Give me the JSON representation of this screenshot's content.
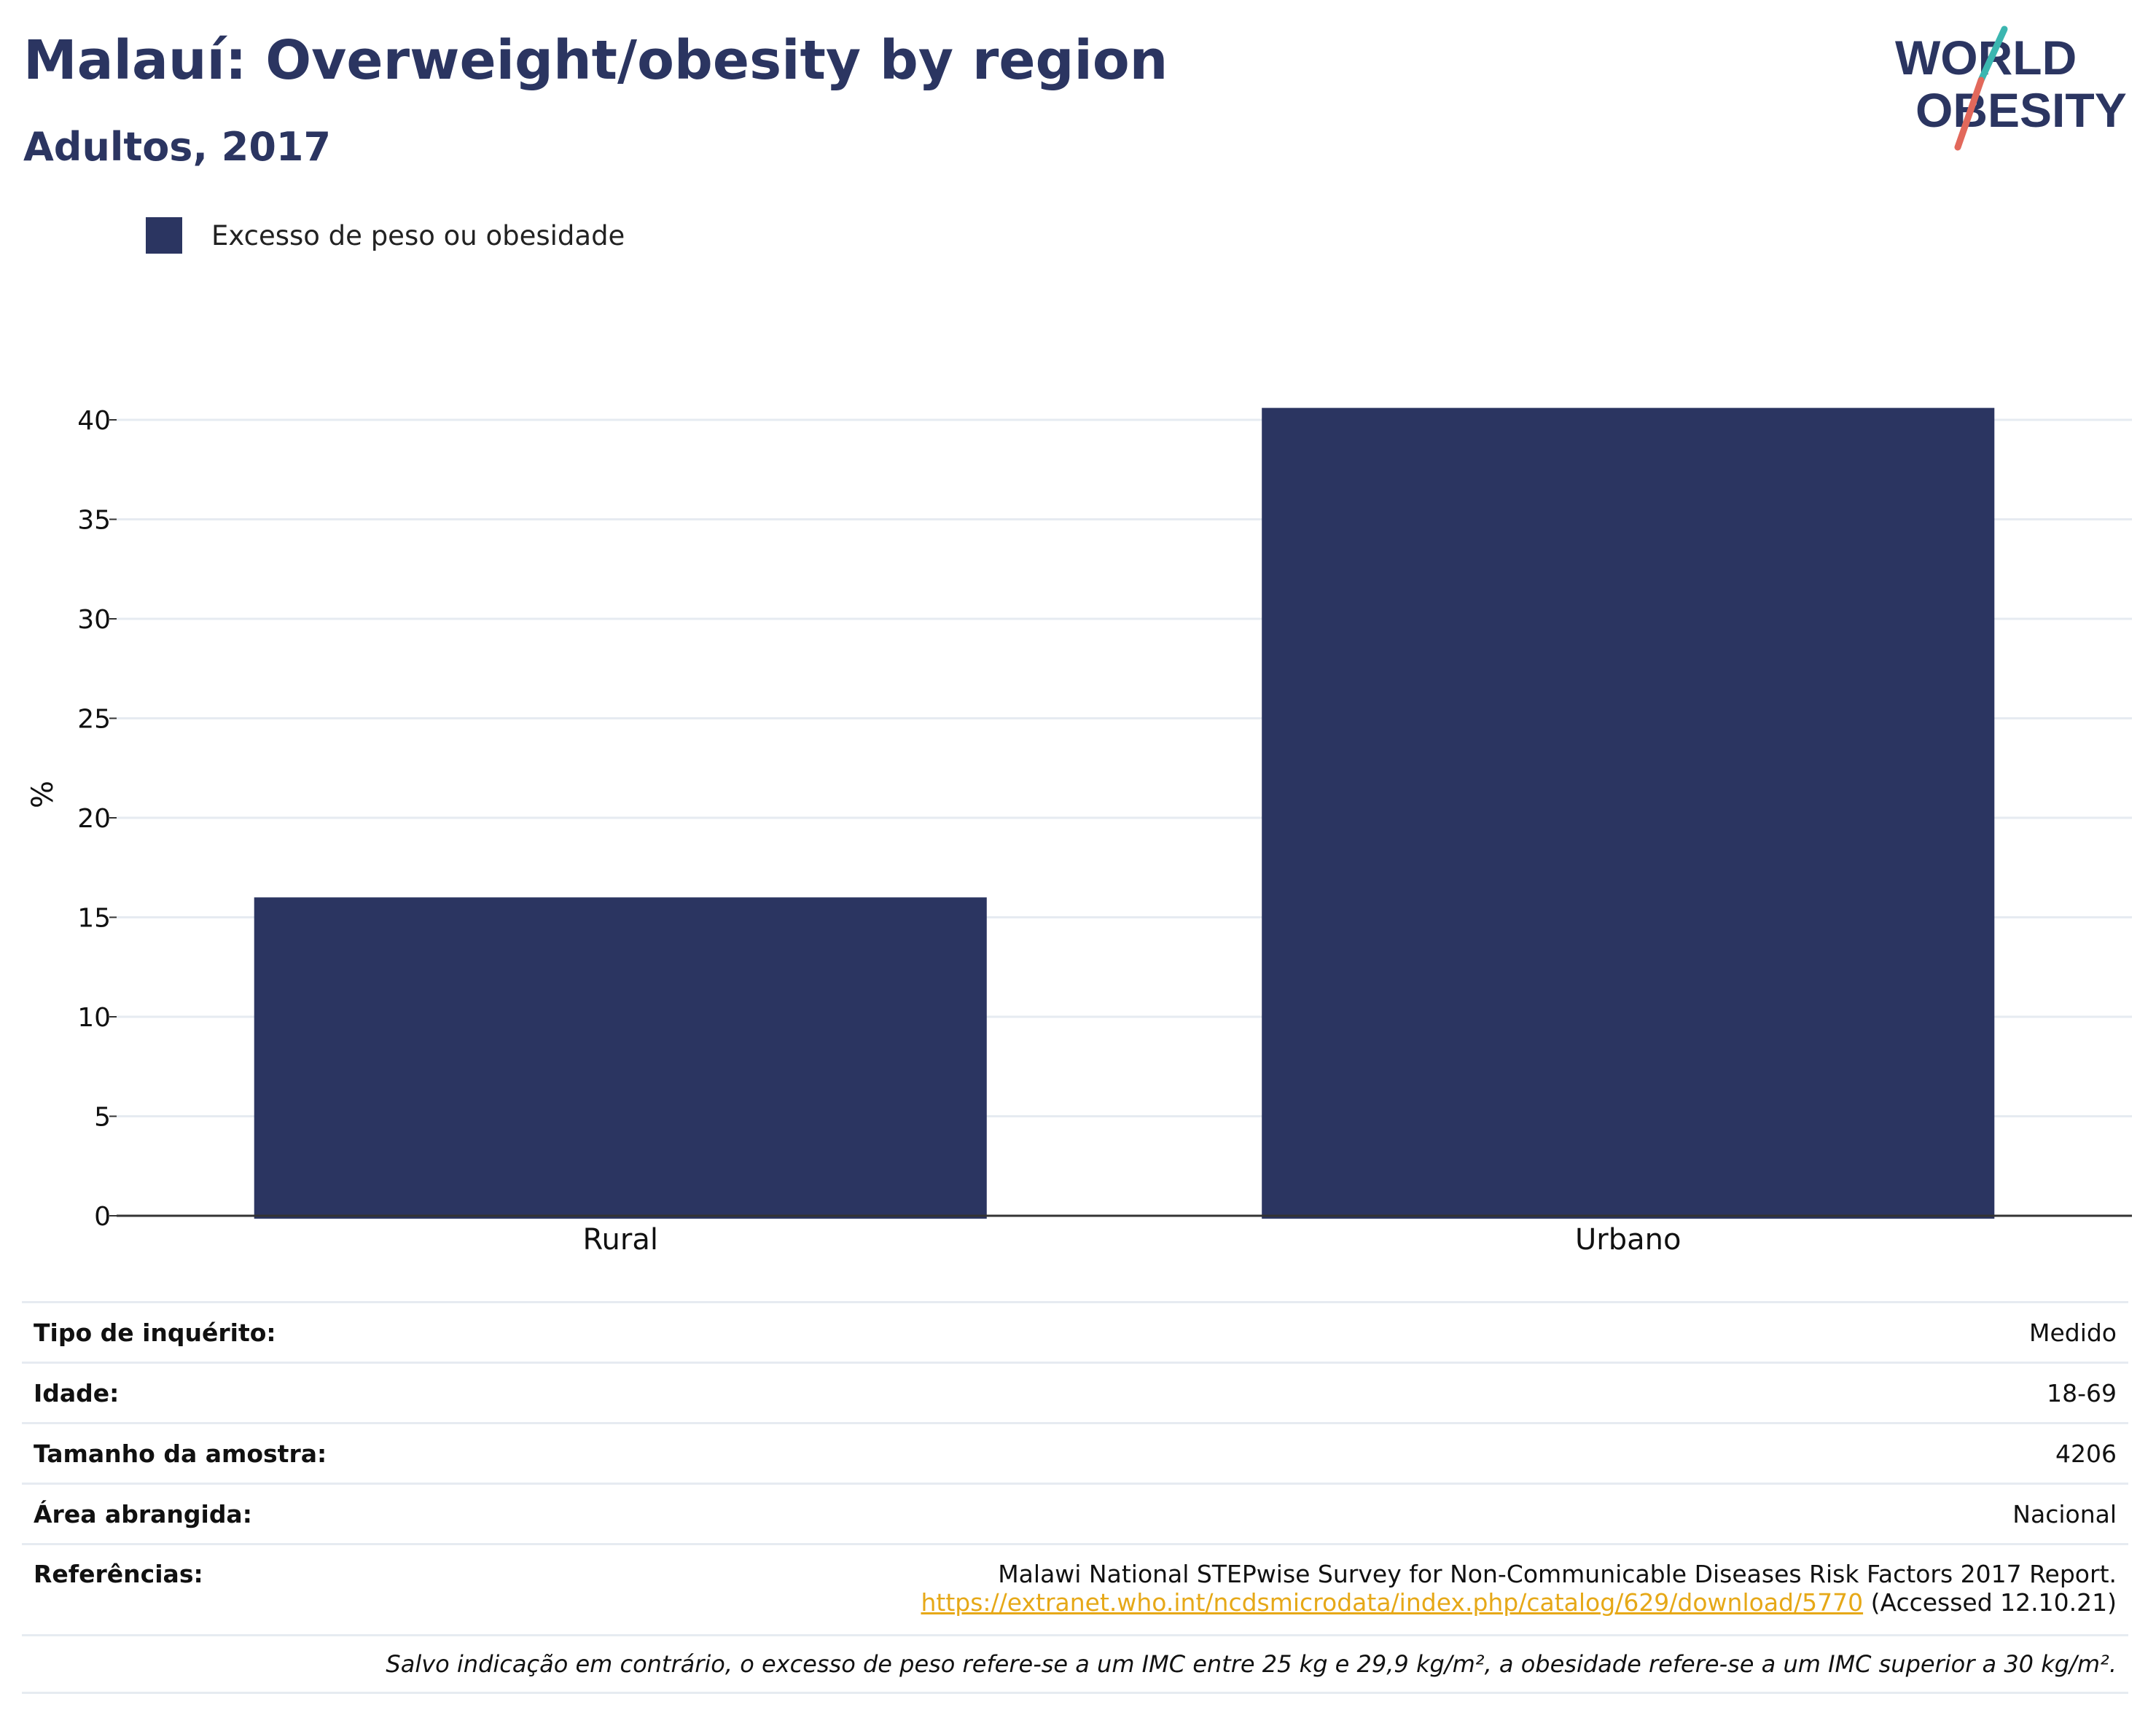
{
  "header": {
    "title": "Malauí: Overweight/obesity by region",
    "subtitle": "Adultos, 2017"
  },
  "logo": {
    "line1": "WORLD",
    "line2": "OBESITY",
    "colors": {
      "text": "#2b3561",
      "slash_top": "#3bb6b0",
      "slash_bottom": "#e2685b"
    }
  },
  "legend": {
    "label": "Excesso de peso ou obesidade",
    "color": "#2b3561"
  },
  "chart_data": {
    "type": "bar",
    "categories": [
      "Rural",
      "Urbano"
    ],
    "series": [
      {
        "name": "Excesso de peso ou obesidade",
        "values": [
          16.0,
          40.6
        ],
        "color": "#2b3561"
      }
    ],
    "ylabel": "%",
    "xlabel": "",
    "ylim": [
      0,
      42
    ],
    "yticks": [
      0,
      5,
      10,
      15,
      20,
      25,
      30,
      35,
      40
    ],
    "grid": true,
    "legend_position": "top-left"
  },
  "info": {
    "survey_type": {
      "label": "Tipo de inquérito:",
      "value": "Medido"
    },
    "age": {
      "label": "Idade:",
      "value": "18-69"
    },
    "sample_size": {
      "label": "Tamanho da amostra:",
      "value": "4206"
    },
    "area": {
      "label": "Área abrangida:",
      "value": "Nacional"
    },
    "references": {
      "label": "Referências:",
      "text": "Malawi National STEPwise Survey for Non-Communicable Diseases Risk Factors 2017 Report.",
      "link": "https://extranet.who.int/ncdsmicrodata/index.php/catalog/629/download/5770",
      "accessed": " (Accessed 12.10.21)"
    },
    "note": "Salvo indicação em contrário, o excesso de peso refere-se a um IMC entre 25 kg e 29,9 kg/m², a obesidade refere-se a um IMC superior a 30 kg/m²."
  }
}
